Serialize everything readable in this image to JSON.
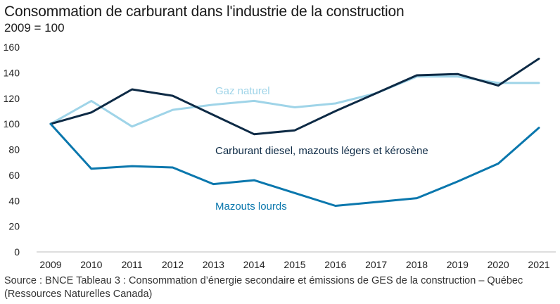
{
  "title": "Consommation de carburant dans l'industrie de la construction",
  "subtitle": "2009 = 100",
  "source_line1": "Source : BNCE Tableau 3 : Consommation d’énergie secondaire et émissions de GES de la construction – Québec",
  "source_line2": "(Ressources Naturelles Canada)",
  "chart_data": {
    "type": "line",
    "x": [
      "2009",
      "2010",
      "2011",
      "2012",
      "2013",
      "2014",
      "2015",
      "2016",
      "2017",
      "2018",
      "2019",
      "2020",
      "2021"
    ],
    "ylim": [
      0,
      160
    ],
    "yticks": [
      0,
      20,
      40,
      60,
      80,
      100,
      120,
      140,
      160
    ],
    "grid": false,
    "series": [
      {
        "name": "Gaz naturel",
        "color": "#9fd4e8",
        "values": [
          100,
          118,
          98,
          111,
          115,
          118,
          113,
          116,
          124,
          137,
          137,
          132,
          132
        ]
      },
      {
        "name": "Carburant diesel, mazouts légers et kérosène",
        "color": "#0d2a45",
        "values": [
          100,
          109,
          127,
          122,
          107,
          92,
          95,
          110,
          124,
          138,
          139,
          130,
          151
        ]
      },
      {
        "name": "Mazouts lourds",
        "color": "#0a77ad",
        "values": [
          100,
          65,
          67,
          66,
          53,
          56,
          46,
          36,
          39,
          42,
          55,
          69,
          97
        ]
      }
    ]
  }
}
